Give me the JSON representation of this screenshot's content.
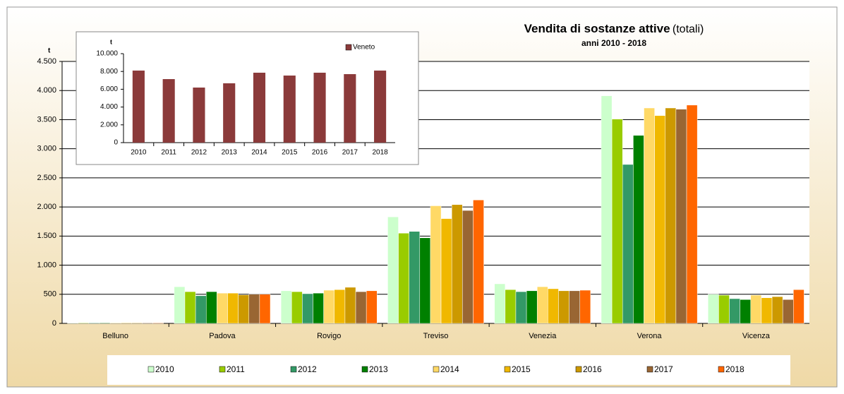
{
  "chart_data": [
    {
      "type": "bar",
      "title": "Vendita di sostanze attive",
      "title_suffix": "(totali)",
      "subtitle": "anni 2010 - 2018",
      "y_label": "t",
      "categories": [
        "Belluno",
        "Padova",
        "Rovigo",
        "Treviso",
        "Venezia",
        "Verona",
        "Vicenza"
      ],
      "series": [
        {
          "name": "2010",
          "color": "#ccffcc",
          "values": [
            10,
            630,
            560,
            1830,
            680,
            3910,
            500
          ]
        },
        {
          "name": "2011",
          "color": "#99cc00",
          "values": [
            10,
            545,
            545,
            1550,
            580,
            3510,
            485
          ]
        },
        {
          "name": "2012",
          "color": "#339966",
          "values": [
            10,
            475,
            510,
            1580,
            545,
            2730,
            425
          ]
        },
        {
          "name": "2013",
          "color": "#008000",
          "values": [
            10,
            545,
            520,
            1470,
            560,
            3230,
            410
          ]
        },
        {
          "name": "2014",
          "color": "#ffd966",
          "values": [
            10,
            520,
            570,
            2020,
            630,
            3700,
            485
          ]
        },
        {
          "name": "2015",
          "color": "#f0b800",
          "values": [
            10,
            520,
            580,
            1800,
            595,
            3570,
            440
          ]
        },
        {
          "name": "2016",
          "color": "#cc9900",
          "values": [
            10,
            490,
            620,
            2040,
            560,
            3700,
            460
          ]
        },
        {
          "name": "2017",
          "color": "#996633",
          "values": [
            10,
            500,
            545,
            1940,
            560,
            3680,
            410
          ]
        },
        {
          "name": "2018",
          "color": "#ff6600",
          "values": [
            10,
            500,
            560,
            2120,
            570,
            3750,
            580
          ]
        }
      ],
      "ylim": [
        0,
        4500
      ],
      "yticks": [
        0,
        {
          "value": 500,
          "label": "500"
        },
        {
          "value": 1000,
          "label": "1.000"
        },
        {
          "value": 1500,
          "label": "1.500"
        },
        {
          "value": 2000,
          "label": "2.000"
        },
        {
          "value": 2500,
          "label": "2.500"
        },
        {
          "value": 3000,
          "label": "3.000"
        },
        {
          "value": 3500,
          "label": "3.500"
        },
        {
          "value": 4000,
          "label": "4.000"
        },
        {
          "value": 4500,
          "label": "4.500"
        }
      ],
      "grid": true,
      "legend": "bottom"
    },
    {
      "type": "bar",
      "y_label": "t",
      "categories": [
        "2010",
        "2011",
        "2012",
        "2013",
        "2014",
        "2015",
        "2016",
        "2017",
        "2018"
      ],
      "series": [
        {
          "name": "Veneto",
          "color": "#8b3a3a",
          "values": [
            8100,
            7140,
            6190,
            6670,
            7860,
            7540,
            7860,
            7700,
            8100
          ]
        }
      ],
      "ylim": [
        0,
        10000
      ],
      "yticks": [
        0,
        {
          "value": 2000,
          "label": "2.000"
        },
        {
          "value": 4000,
          "label": "4.000"
        },
        {
          "value": 6000,
          "label": "6.000"
        },
        {
          "value": 8000,
          "label": "8.000"
        },
        {
          "value": 10000,
          "label": "10.000"
        }
      ],
      "grid": false,
      "legend": "top-right"
    }
  ]
}
